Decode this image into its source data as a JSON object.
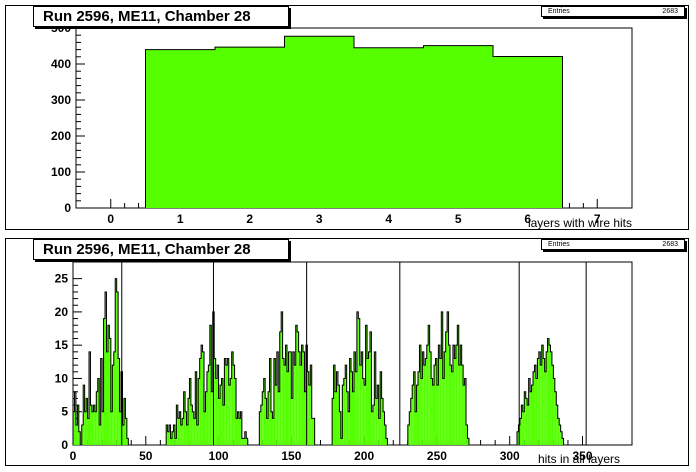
{
  "chart_data": [
    {
      "type": "bar",
      "title": "Run 2596, ME11, Chamber 28",
      "xlabel": "layers with wire hits",
      "ylabel": "",
      "stats": {
        "entries_label": "Entries",
        "entries_value": "2683"
      },
      "xlim": [
        -0.5,
        7.5
      ],
      "ylim": [
        0,
        500
      ],
      "xticks": [
        0,
        1,
        2,
        3,
        4,
        5,
        6,
        7
      ],
      "yticks": [
        0,
        100,
        200,
        300,
        400,
        500
      ],
      "bins": [
        1,
        2,
        3,
        4,
        5,
        6
      ],
      "values": [
        440,
        447,
        477,
        445,
        451,
        421
      ],
      "color": "#55ff00"
    },
    {
      "type": "bar",
      "title": "Run 2596, ME11, Chamber 28",
      "xlabel": "hits in all layers",
      "ylabel": "",
      "stats": {
        "entries_label": "Entries",
        "entries_value": "2683"
      },
      "xlim": [
        0,
        384
      ],
      "ylim": [
        0,
        27.5
      ],
      "xticks": [
        0,
        50,
        100,
        150,
        200,
        250,
        300,
        350
      ],
      "yticks": [
        0,
        5,
        10,
        15,
        20,
        25
      ],
      "color": "#55ff00",
      "spikes": [
        [
          33,
          40
        ],
        [
          96,
          40
        ],
        [
          160,
          40
        ],
        [
          224,
          40
        ],
        [
          306,
          40
        ],
        [
          352,
          40
        ]
      ],
      "segments": [
        {
          "start": 0,
          "values": [
            5,
            8,
            3,
            6,
            2,
            0,
            3,
            9,
            5,
            7,
            4,
            14,
            6,
            5,
            6,
            5,
            8,
            10,
            3,
            13,
            5,
            19,
            23,
            14,
            18,
            16,
            5,
            12,
            14,
            25,
            23,
            13,
            5,
            11,
            3,
            7,
            4,
            1,
            0,
            0,
            0,
            0,
            0,
            0,
            0
          ]
        },
        {
          "start": 64,
          "values": [
            3,
            2,
            3,
            1,
            2,
            3,
            1,
            6,
            4,
            5,
            3,
            4,
            8,
            5,
            3,
            7,
            10,
            6,
            5,
            4,
            11,
            3,
            10,
            13,
            15,
            14,
            5,
            8,
            11,
            12,
            18,
            8,
            20,
            13,
            10,
            12,
            7,
            9,
            10,
            6,
            13,
            12,
            13,
            9,
            10,
            14,
            12,
            10,
            4,
            5,
            4,
            5,
            1,
            1,
            2,
            1,
            0
          ]
        },
        {
          "start": 128,
          "values": [
            5,
            6,
            8,
            10,
            7,
            4,
            8,
            13,
            5,
            4,
            13,
            9,
            14,
            8,
            17,
            20,
            13,
            12,
            15,
            11,
            14,
            14,
            7,
            14,
            12,
            18,
            17,
            14,
            12,
            15,
            14,
            8,
            15,
            11,
            9,
            12,
            4,
            4,
            0
          ]
        },
        {
          "start": 178,
          "values": [
            7,
            12,
            8,
            11,
            9,
            5,
            1,
            9,
            10,
            12,
            8,
            5,
            13,
            11,
            8,
            14,
            11,
            20,
            19,
            12,
            14,
            10,
            9,
            18,
            13,
            14,
            17,
            5,
            6,
            14,
            7,
            9,
            4,
            11,
            7,
            5,
            3,
            1,
            0
          ]
        },
        {
          "start": 230,
          "values": [
            3,
            5,
            7,
            9,
            11,
            5,
            9,
            11,
            15,
            10,
            14,
            12,
            13,
            15,
            18,
            14,
            10,
            9,
            12,
            13,
            9,
            15,
            13,
            20,
            10,
            14,
            17,
            20,
            15,
            12,
            11,
            15,
            13,
            15,
            18,
            12,
            15,
            12,
            9,
            10,
            3,
            1,
            0
          ]
        },
        {
          "start": 305,
          "values": [
            2,
            3,
            4,
            6,
            5,
            8,
            7,
            6,
            10,
            8,
            9,
            11,
            12,
            10,
            13,
            14,
            12,
            15,
            13,
            11,
            14,
            16,
            15,
            14,
            12,
            10,
            8,
            6,
            4,
            3,
            2,
            1
          ]
        }
      ]
    }
  ]
}
